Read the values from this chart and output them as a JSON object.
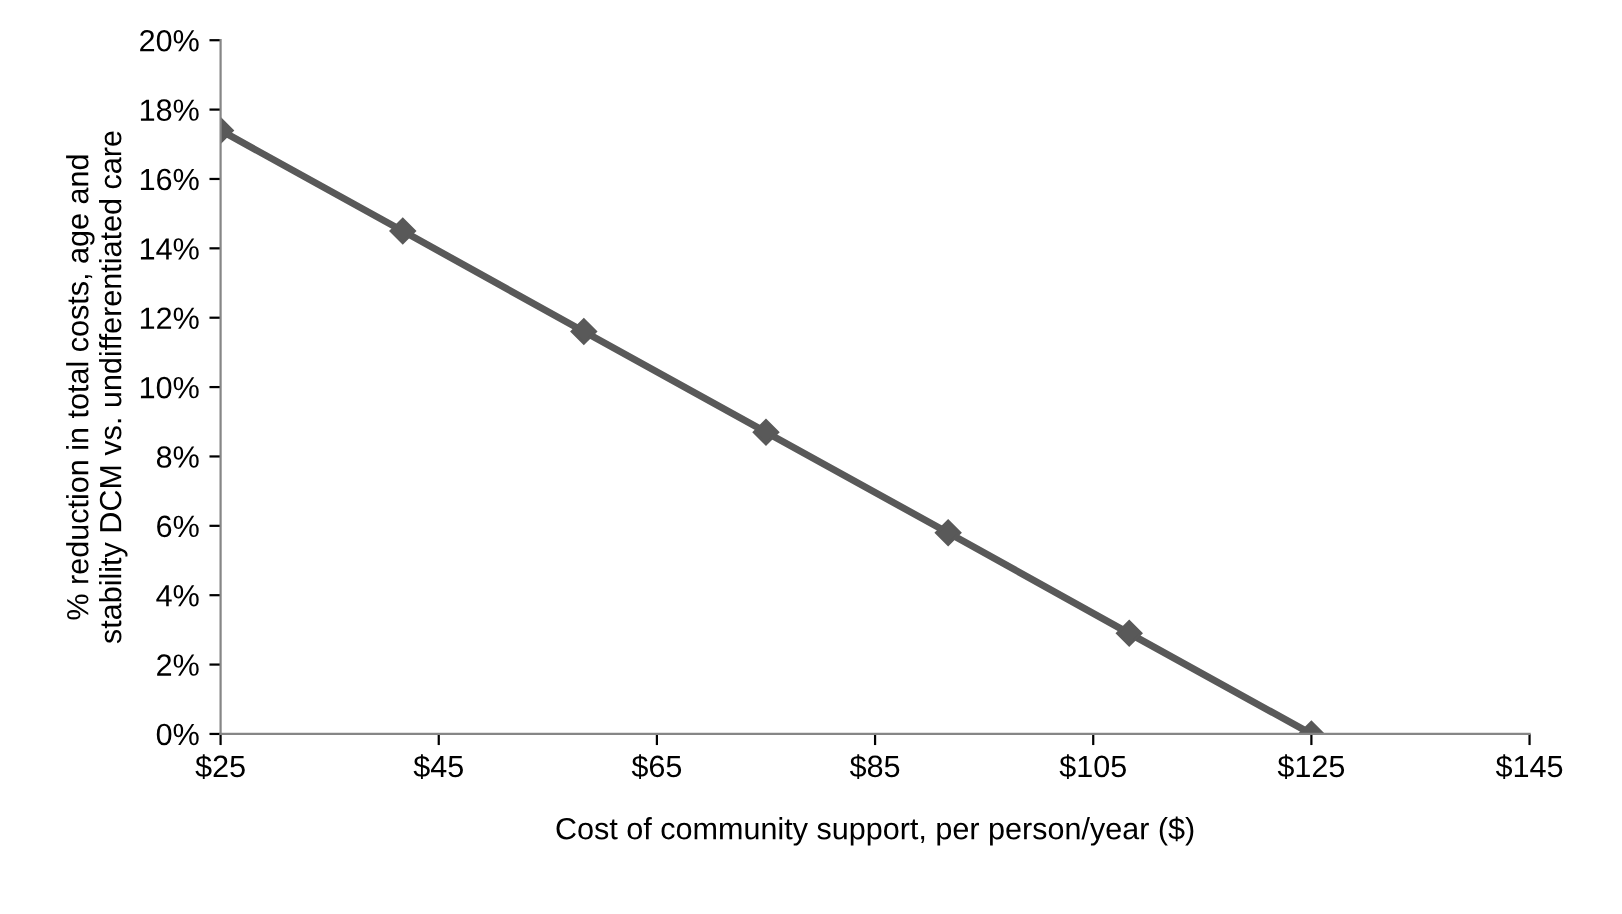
{
  "chart_data": {
    "type": "line",
    "xlabel": "Cost of community support, per person/year ($)",
    "ylabel": "% reduction in total costs, age and\nstability DCM vs. undifferentiated care",
    "x": [
      25,
      41.7,
      58.3,
      75,
      91.7,
      108.3,
      125
    ],
    "series": [
      {
        "color": "#595959",
        "values": [
          17.4,
          14.5,
          11.6,
          8.7,
          5.8,
          2.9,
          0
        ]
      }
    ],
    "xlim": [
      25,
      145
    ],
    "xticks": [
      {
        "value": 25,
        "label": "$25"
      },
      {
        "value": 45,
        "label": "$45"
      },
      {
        "value": 65,
        "label": "$65"
      },
      {
        "value": 85,
        "label": "$85"
      },
      {
        "value": 105,
        "label": "$105"
      },
      {
        "value": 125,
        "label": "$125"
      },
      {
        "value": 145,
        "label": "$145"
      }
    ],
    "ylim": [
      0,
      20
    ],
    "yticks": [
      {
        "value": 0,
        "label": "0%"
      },
      {
        "value": 2,
        "label": "2%"
      },
      {
        "value": 4,
        "label": "4%"
      },
      {
        "value": 6,
        "label": "6%"
      },
      {
        "value": 8,
        "label": "8%"
      },
      {
        "value": 10,
        "label": "10%"
      },
      {
        "value": 12,
        "label": "12%"
      },
      {
        "value": 14,
        "label": "14%"
      },
      {
        "value": 16,
        "label": "16%"
      },
      {
        "value": 18,
        "label": "18%"
      },
      {
        "value": 20,
        "label": "20%"
      }
    ],
    "grid": false,
    "legend": false,
    "marker": "diamond",
    "line_style": "solid"
  }
}
